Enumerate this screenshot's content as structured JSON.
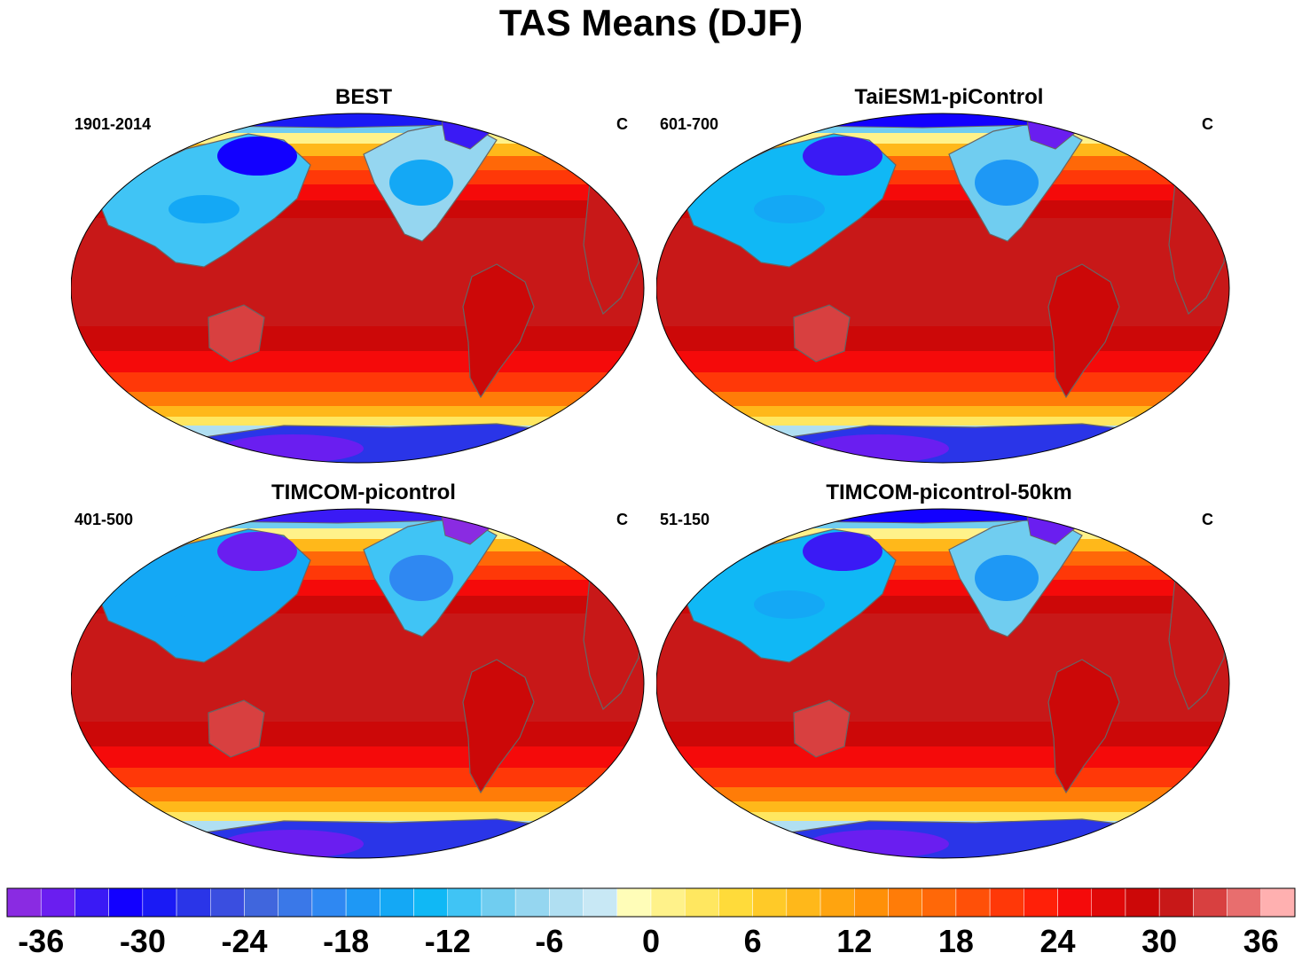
{
  "title": "TAS Means (DJF)",
  "chart_data": {
    "type": "heatmap",
    "panels": [
      {
        "title": "BEST",
        "left_label": "1901-2014",
        "right_label": "C"
      },
      {
        "title": "TaiESM1-piControl",
        "left_label": "601-700",
        "right_label": "C"
      },
      {
        "title": "TIMCOM-picontrol",
        "left_label": "401-500",
        "right_label": "C"
      },
      {
        "title": "TIMCOM-picontrol-50km",
        "left_label": "51-150",
        "right_label": "C"
      }
    ],
    "colorbar": {
      "levels": [
        -40,
        -38,
        -36,
        -34,
        -32,
        -30,
        -28,
        -26,
        -24,
        -22,
        -20,
        -18,
        -16,
        -14,
        -12,
        -10,
        -8,
        -6,
        -4,
        -2,
        0,
        2,
        4,
        6,
        8,
        10,
        12,
        14,
        16,
        18,
        20,
        22,
        24,
        26,
        28,
        30,
        32,
        34,
        36,
        38,
        40,
        42
      ],
      "tick_labels": [
        "-36",
        "-30",
        "-24",
        "-18",
        "-12",
        "-6",
        "0",
        "6",
        "12",
        "18",
        "24",
        "30",
        "36"
      ],
      "tick_values": [
        -36,
        -30,
        -24,
        -18,
        -12,
        -6,
        0,
        6,
        12,
        18,
        24,
        30,
        36
      ],
      "colors": [
        "#8a2be2",
        "#6a1ef0",
        "#3a1af5",
        "#1200ff",
        "#1a1af5",
        "#2a35e8",
        "#3a4ee0",
        "#4066dd",
        "#3a78e8",
        "#2f88f2",
        "#1e98f5",
        "#14a8f5",
        "#10b8f5",
        "#40c4f5",
        "#70cdf0",
        "#95d6f0",
        "#b0dff2",
        "#c8e8f5",
        "#fffdb8",
        "#fff28a",
        "#ffe760",
        "#ffdb3a",
        "#ffca28",
        "#ffb81a",
        "#ffa40f",
        "#ff9008",
        "#ff7c08",
        "#ff6808",
        "#ff5008",
        "#ff3808",
        "#ff2008",
        "#f50a0a",
        "#e00808",
        "#cc0808",
        "#c81818",
        "#d84040",
        "#e86e6e",
        "#ffb0b0"
      ]
    }
  }
}
